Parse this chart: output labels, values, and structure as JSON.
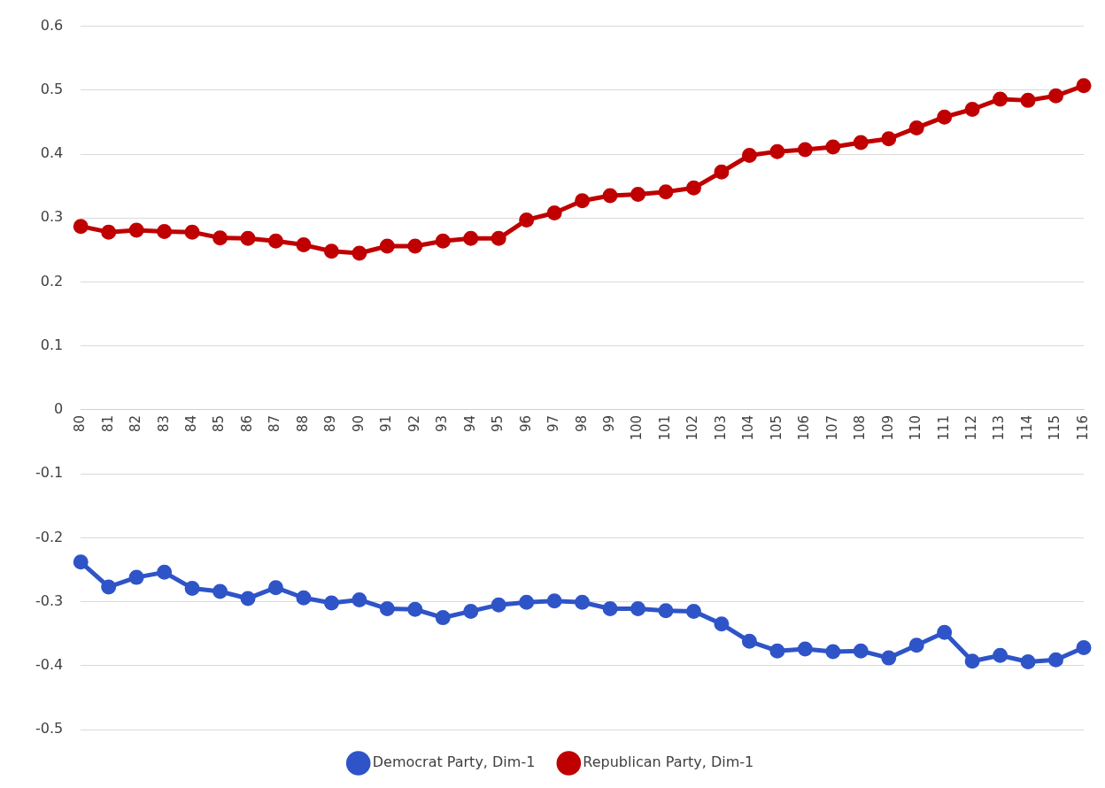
{
  "chart_data": {
    "type": "line",
    "categories": [
      "80",
      "81",
      "82",
      "83",
      "84",
      "85",
      "86",
      "87",
      "88",
      "89",
      "90",
      "91",
      "92",
      "93",
      "94",
      "95",
      "96",
      "97",
      "98",
      "99",
      "100",
      "101",
      "102",
      "103",
      "104",
      "105",
      "106",
      "107",
      "108",
      "109",
      "110",
      "111",
      "112",
      "113",
      "114",
      "115",
      "116"
    ],
    "series": [
      {
        "name": "Democrat Party, Dim-1",
        "color": "#2e54c8",
        "values": [
          -0.238,
          -0.277,
          -0.262,
          -0.254,
          -0.279,
          -0.284,
          -0.295,
          -0.278,
          -0.294,
          -0.302,
          -0.297,
          -0.311,
          -0.312,
          -0.325,
          -0.315,
          -0.305,
          -0.301,
          -0.299,
          -0.301,
          -0.311,
          -0.311,
          -0.314,
          -0.315,
          -0.335,
          -0.362,
          -0.377,
          -0.374,
          -0.378,
          -0.377,
          -0.388,
          -0.368,
          -0.348,
          -0.393,
          -0.384,
          -0.394,
          -0.391,
          -0.372
        ]
      },
      {
        "name": "Republican Party, Dim-1",
        "color": "#c00000",
        "values": [
          0.287,
          0.278,
          0.281,
          0.279,
          0.278,
          0.269,
          0.268,
          0.264,
          0.258,
          0.248,
          0.245,
          0.256,
          0.256,
          0.264,
          0.268,
          0.268,
          0.297,
          0.308,
          0.327,
          0.335,
          0.337,
          0.341,
          0.347,
          0.372,
          0.398,
          0.404,
          0.407,
          0.411,
          0.418,
          0.424,
          0.441,
          0.458,
          0.47,
          0.486,
          0.484,
          0.491,
          0.507
        ]
      }
    ],
    "ylim": [
      -0.5,
      0.6
    ],
    "yticks": [
      -0.5,
      -0.4,
      -0.3,
      -0.2,
      -0.1,
      0,
      0.1,
      0.2,
      0.3,
      0.4,
      0.5,
      0.6
    ],
    "grid": "y",
    "legend": "bottom",
    "marker": "circle",
    "line_style": "solid"
  }
}
